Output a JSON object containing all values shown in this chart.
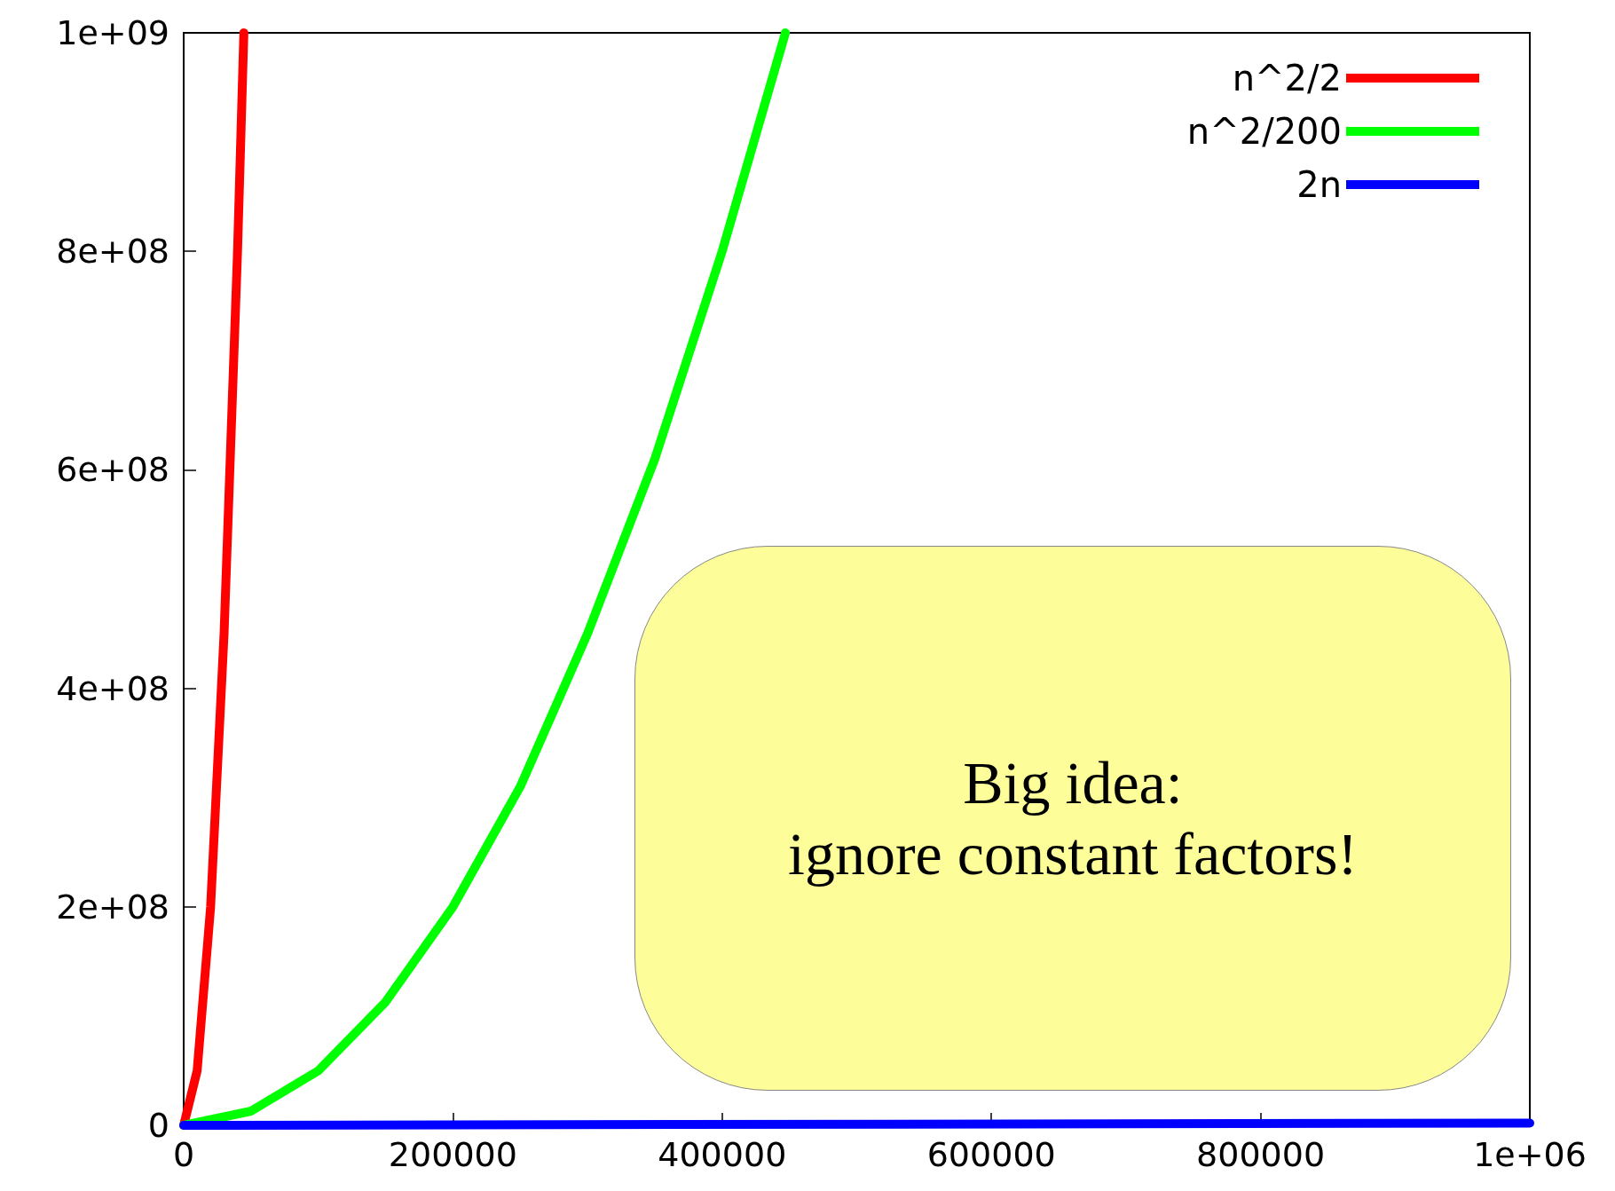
{
  "chart_data": {
    "type": "line",
    "xlim": [
      0,
      1000000
    ],
    "ylim": [
      0,
      1000000000
    ],
    "xticks": [
      0,
      200000,
      400000,
      600000,
      800000,
      {
        "value": 1000000,
        "label": "1e+06"
      }
    ],
    "yticks": [
      0,
      {
        "value": 200000000,
        "label": "2e+08"
      },
      {
        "value": 400000000,
        "label": "4e+08"
      },
      {
        "value": 600000000,
        "label": "6e+08"
      },
      {
        "value": 800000000,
        "label": "8e+08"
      },
      {
        "value": 1000000000,
        "label": "1e+09"
      }
    ],
    "series": [
      {
        "name": "n^2/2",
        "color": "#ff0000",
        "x": [
          0,
          10000,
          20000,
          30000,
          40000,
          44700
        ],
        "values": [
          0,
          50000000,
          200000000,
          450000000,
          800000000,
          1000000000
        ]
      },
      {
        "name": "n^2/200",
        "color": "#00ff00",
        "x": [
          0,
          50000,
          100000,
          150000,
          200000,
          250000,
          300000,
          350000,
          400000,
          447000
        ],
        "values": [
          0,
          13000000,
          50000000,
          113000000,
          200000000,
          310000000,
          450000000,
          610000000,
          800000000,
          1000000000
        ]
      },
      {
        "name": "2n",
        "color": "#0000ff",
        "x": [
          0,
          1000000
        ],
        "values": [
          0,
          2000000
        ]
      }
    ],
    "legend": "top right",
    "grid": false,
    "marker": "none",
    "line_style": "solid",
    "annotations": [
      "Big idea:\nignore constant factors!"
    ]
  }
}
